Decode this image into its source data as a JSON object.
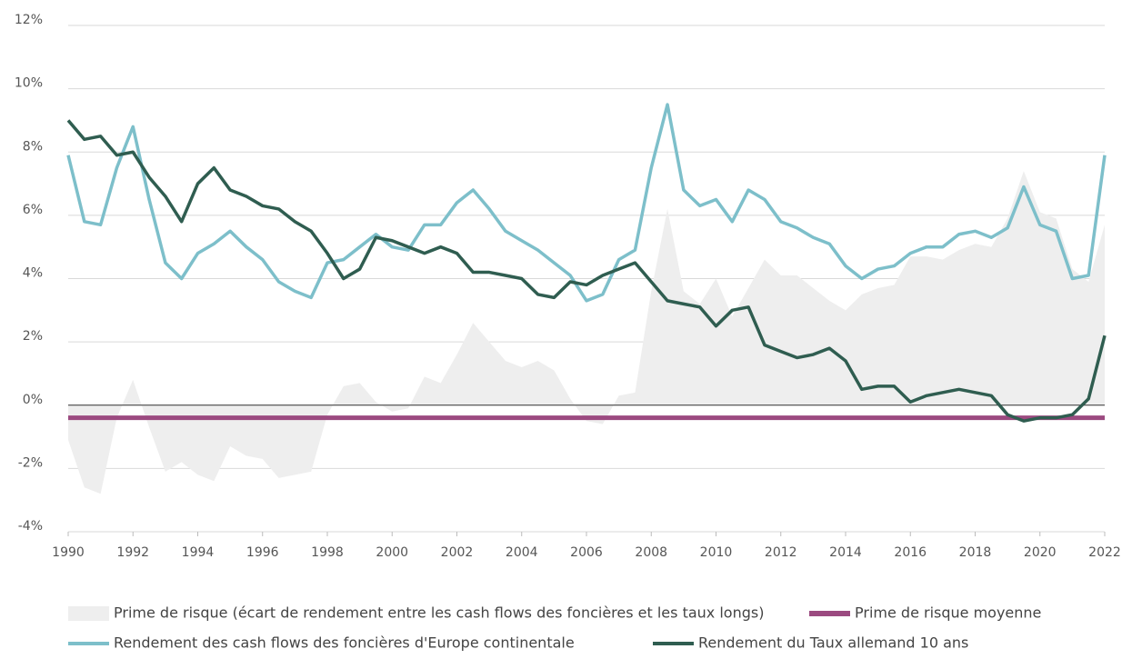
{
  "chart_data": {
    "type": "line",
    "x": [
      1990,
      1990.5,
      1991,
      1991.5,
      1992,
      1992.5,
      1993,
      1993.5,
      1994,
      1994.5,
      1995,
      1995.5,
      1996,
      1996.5,
      1997,
      1997.5,
      1998,
      1998.5,
      1999,
      1999.5,
      2000,
      2000.5,
      2001,
      2001.5,
      2002,
      2002.5,
      2003,
      2003.5,
      2004,
      2004.5,
      2005,
      2005.5,
      2006,
      2006.5,
      2007,
      2007.5,
      2008,
      2008.5,
      2009,
      2009.5,
      2010,
      2010.5,
      2011,
      2011.5,
      2012,
      2012.5,
      2013,
      2013.5,
      2014,
      2014.5,
      2015,
      2015.5,
      2016,
      2016.5,
      2017,
      2017.5,
      2018,
      2018.5,
      2019,
      2019.5,
      2020,
      2020.5,
      2021,
      2021.5,
      2022
    ],
    "series": [
      {
        "name": "Prime de risque (écart de rendement entre les cash flows des foncières et les taux longs)",
        "kind": "area",
        "color": "#eeeeee",
        "values": [
          -1.1,
          -2.6,
          -2.8,
          -0.4,
          0.8,
          -0.7,
          -2.1,
          -1.8,
          -2.2,
          -2.4,
          -1.3,
          -1.6,
          -1.7,
          -2.3,
          -2.2,
          -2.1,
          -0.3,
          0.6,
          0.7,
          0.1,
          -0.2,
          -0.1,
          0.9,
          0.7,
          1.6,
          2.6,
          2.0,
          1.4,
          1.2,
          1.4,
          1.1,
          0.2,
          -0.5,
          -0.6,
          0.3,
          0.4,
          3.6,
          6.2,
          3.6,
          3.2,
          4.0,
          2.8,
          3.7,
          4.6,
          4.1,
          4.1,
          3.7,
          3.3,
          3.0,
          3.5,
          3.7,
          3.8,
          4.7,
          4.7,
          4.6,
          4.9,
          5.1,
          5.0,
          5.9,
          7.4,
          6.1,
          5.9,
          4.3,
          3.9,
          5.7
        ]
      },
      {
        "name": "Prime de risque moyenne",
        "kind": "hline",
        "color": "#9b4a80",
        "value": -0.4
      },
      {
        "name": "Rendement des cash flows des foncières d'Europe continentale",
        "kind": "line",
        "color": "#7dbfca",
        "values": [
          7.9,
          5.8,
          5.7,
          7.5,
          8.8,
          6.5,
          4.5,
          4.0,
          4.8,
          5.1,
          5.5,
          5.0,
          4.6,
          3.9,
          3.6,
          3.4,
          4.5,
          4.6,
          5.0,
          5.4,
          5.0,
          4.9,
          5.7,
          5.7,
          6.4,
          6.8,
          6.2,
          5.5,
          5.2,
          4.9,
          4.5,
          4.1,
          3.3,
          3.5,
          4.6,
          4.9,
          7.5,
          9.5,
          6.8,
          6.3,
          6.5,
          5.8,
          6.8,
          6.5,
          5.8,
          5.6,
          5.3,
          5.1,
          4.4,
          4.0,
          4.3,
          4.4,
          4.8,
          5.0,
          5.0,
          5.4,
          5.5,
          5.3,
          5.6,
          6.9,
          5.7,
          5.5,
          4.0,
          4.1,
          7.9
        ]
      },
      {
        "name": "Rendement du Taux allemand 10 ans",
        "kind": "line",
        "color": "#2f5d50",
        "values": [
          9.0,
          8.4,
          8.5,
          7.9,
          8.0,
          7.2,
          6.6,
          5.8,
          7.0,
          7.5,
          6.8,
          6.6,
          6.3,
          6.2,
          5.8,
          5.5,
          4.8,
          4.0,
          4.3,
          5.3,
          5.2,
          5.0,
          4.8,
          5.0,
          4.8,
          4.2,
          4.2,
          4.1,
          4.0,
          3.5,
          3.4,
          3.9,
          3.8,
          4.1,
          4.3,
          4.5,
          3.9,
          3.3,
          3.2,
          3.1,
          2.5,
          3.0,
          3.1,
          1.9,
          1.7,
          1.5,
          1.6,
          1.8,
          1.4,
          0.5,
          0.6,
          0.6,
          0.1,
          0.3,
          0.4,
          0.5,
          0.4,
          0.3,
          -0.3,
          -0.5,
          -0.4,
          -0.4,
          -0.3,
          0.2,
          2.2
        ]
      }
    ],
    "xlim": [
      1990,
      2022
    ],
    "xticks": [
      1990,
      1992,
      1994,
      1996,
      1998,
      2000,
      2002,
      2004,
      2006,
      2008,
      2010,
      2012,
      2014,
      2016,
      2018,
      2020,
      2022
    ],
    "ylim": [
      -4,
      12
    ],
    "yticks": [
      {
        "value": -4,
        "label": "-4%"
      },
      {
        "value": -2,
        "label": "-2%"
      },
      {
        "value": 0,
        "label": "0%"
      },
      {
        "value": 2,
        "label": "2%"
      },
      {
        "value": 4,
        "label": "4%"
      },
      {
        "value": 6,
        "label": "6%"
      },
      {
        "value": 8,
        "label": "8%"
      },
      {
        "value": 10,
        "label": "10%"
      },
      {
        "value": 12,
        "label": "12%"
      }
    ],
    "grid": true
  }
}
